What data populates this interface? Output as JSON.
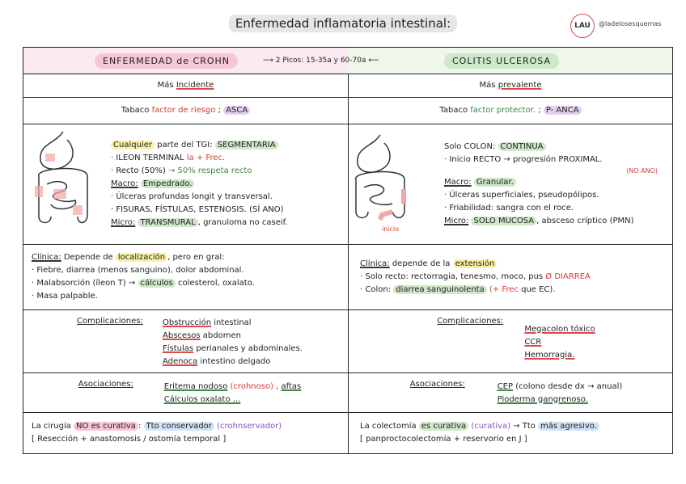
{
  "header": {
    "title": "Enfermedad inflamatoria intestinal:",
    "logo": "LAU",
    "handle": "@ladelosesquemas"
  },
  "table": {
    "top": {
      "left": "ENFERMEDAD de CROHN",
      "center": "2 Picos: 15-35a y 60-70a",
      "right": "COLITIS ULCEROSA"
    },
    "rows": [
      {
        "left": {
          "lines": [
            [
              {
                "text": "Más "
              },
              {
                "text": "Incidente",
                "underline": "#e04848"
              }
            ]
          ]
        },
        "right": {
          "lines": [
            [
              {
                "text": "Más "
              },
              {
                "text": "prevalente",
                "underline": "#e04848"
              }
            ]
          ]
        }
      },
      {
        "left": {
          "lines": [
            [
              {
                "text": "Tabaco "
              },
              {
                "text": "factor de riesgo",
                "color": "#d83a2e"
              },
              {
                "text": " ; "
              },
              {
                "text": "ASCA",
                "highlight": "#e3d0ef"
              }
            ]
          ]
        },
        "right": {
          "lines": [
            [
              {
                "text": "Tabaco "
              },
              {
                "text": "factor protector.",
                "color": "#3c8a4a"
              },
              {
                "text": " ; "
              },
              {
                "text": "P- ANCA",
                "highlight": "#e3d0ef"
              }
            ]
          ]
        }
      },
      {
        "left": {
          "lines": [
            [
              {
                "text": "Cualquier",
                "highlight": "#fbf0a6"
              },
              {
                "text": " parte del TGI: "
              },
              {
                "text": "SEGMENTARIA",
                "highlight": "#cfe8c9"
              }
            ],
            [
              {
                "text": "· ILEON TERMINAL "
              },
              {
                "text": "la + Frec.",
                "color": "#d83a2e"
              }
            ],
            [
              {
                "text": "· Recto (50%) "
              },
              {
                "text": "→ 50% respeta recto",
                "color": "#3c8a4a"
              }
            ],
            [
              {
                "text": "Macro:",
                "underline": "#333333"
              },
              {
                "text": " "
              },
              {
                "text": "Empedrado.",
                "highlight": "#cfe8c9"
              }
            ],
            [
              {
                "text": "· Úlceras profundas longit y transversal."
              }
            ],
            [
              {
                "text": "· FISURAS, FÍSTULAS, ESTENOSIS. (SÍ ANO)"
              }
            ],
            [
              {
                "text": "Micro:",
                "underline": "#333333"
              },
              {
                "text": " "
              },
              {
                "text": "TRANSMURAL",
                "highlight": "#cfe8c9"
              },
              {
                "text": ", granuloma no caseif."
              }
            ]
          ]
        },
        "right": {
          "note": "inicio",
          "lines": [
            [
              {
                "text": "Solo COLON: "
              },
              {
                "text": "CONTINUA",
                "highlight": "#cfe8c9"
              }
            ],
            [
              {
                "text": "· Inicio RECTO → progresión PROXIMAL."
              }
            ],
            [
              {
                "text": "(NO ANO)",
                "color": "#d83a2e"
              }
            ],
            [
              {
                "text": "Macro:",
                "underline": "#333333"
              },
              {
                "text": " "
              },
              {
                "text": "Granular.",
                "highlight": "#cfe8c9"
              }
            ],
            [
              {
                "text": "· Úlceras superficiales, pseudopólipos."
              }
            ],
            [
              {
                "text": "· Friabilidad: sangra con el roce."
              }
            ],
            [
              {
                "text": "Micro:",
                "underline": "#333333"
              },
              {
                "text": " "
              },
              {
                "text": "SOLO MUCOSA",
                "highlight": "#cfe8c9"
              },
              {
                "text": ", absceso críptico (PMN)"
              }
            ]
          ]
        }
      },
      {
        "left": {
          "lines": [
            [
              {
                "text": "Clínica:",
                "underline": "#333333"
              },
              {
                "text": " Depende de "
              },
              {
                "text": "localización",
                "highlight": "#fbf0a6"
              },
              {
                "text": ", pero en gral:"
              }
            ],
            [
              {
                "text": "· Fiebre, diarrea (menos sanguino), dolor abdominal."
              }
            ],
            [
              {
                "text": "· Malabsorción (íleon T) → "
              },
              {
                "text": "cálculos",
                "highlight": "#cfe8c9"
              },
              {
                "text": " colesterol, oxalato."
              }
            ],
            [
              {
                "text": "· Masa palpable."
              }
            ]
          ]
        },
        "right": {
          "lines": [
            [
              {
                "text": "Clínica:",
                "underline": "#333333"
              },
              {
                "text": " depende de la "
              },
              {
                "text": "extensión",
                "highlight": "#fbf0a6"
              }
            ],
            [
              {
                "text": "· Solo recto: rectorragia, tenesmo, moco, pus "
              },
              {
                "text": "Ø DIARREA",
                "color": "#d83a2e"
              }
            ],
            [
              {
                "text": "· Colon: "
              },
              {
                "text": "diarrea sanguinolenta",
                "highlight": "#cfe8c9"
              },
              {
                "text": " (+ Frec",
                "color": "#d83a2e"
              },
              {
                "text": " que EC)."
              }
            ]
          ]
        }
      },
      {
        "left": {
          "label": "Complicaciones:",
          "lines": [
            [
              {
                "text": "Obstrucción",
                "underline": "#e04848"
              },
              {
                "text": " intestinal"
              }
            ],
            [
              {
                "text": "Abscesos",
                "underline": "#e04848"
              },
              {
                "text": " abdomen"
              }
            ],
            [
              {
                "text": "Fístulas",
                "underline": "#e04848"
              },
              {
                "text": " perianales y abdominales."
              }
            ],
            [
              {
                "text": "Adenoca",
                "underline": "#e04848"
              },
              {
                "text": " intestino delgado"
              }
            ]
          ]
        },
        "right": {
          "label": "Complicaciones:",
          "lines": [
            [
              {
                "text": "Megacolon tóxico",
                "underline": "#e04848"
              }
            ],
            [
              {
                "text": "CCR",
                "underline": "#e04848"
              }
            ],
            [
              {
                "text": "Hemorragia.",
                "underline": "#e04848"
              }
            ]
          ]
        }
      },
      {
        "left": {
          "label": "Asociaciones:",
          "lines": [
            [
              {
                "text": "Eritema nodoso",
                "underline": "#3c8a4a"
              },
              {
                "text": " "
              },
              {
                "text": "(crohnoso)",
                "color": "#d83a2e"
              },
              {
                "text": " , "
              },
              {
                "text": "aftas",
                "underline": "#3c8a4a"
              }
            ],
            [
              {
                "text": "Cálculos oxalato ...",
                "underline": "#3c8a4a"
              }
            ]
          ]
        },
        "right": {
          "label": "Asociaciones:",
          "lines": [
            [
              {
                "text": "CEP",
                "underline": "#3c8a4a"
              },
              {
                "text": " (colono desde dx → anual)"
              }
            ],
            [
              {
                "text": "Pioderma gangrenoso.",
                "underline": "#3c8a4a"
              }
            ]
          ]
        }
      },
      {
        "left": {
          "lines": [
            [
              {
                "text": "La cirugía "
              },
              {
                "text": "NO es curativa",
                "highlight": "#f6c6d6"
              },
              {
                "text": ": "
              },
              {
                "text": "Tto conservador",
                "highlight": "#cfe3f5"
              },
              {
                "text": " (crohnservador)",
                "color": "#8a4fbf"
              }
            ],
            [
              {
                "text": "[ Resección + anastomosis / ostomía temporal ]"
              }
            ]
          ]
        },
        "right": {
          "lines": [
            [
              {
                "text": "La colectomía "
              },
              {
                "text": "es curativa",
                "highlight": "#cfe8c9"
              },
              {
                "text": " (curativa)",
                "color": "#8a4fbf"
              },
              {
                "text": " → Tto "
              },
              {
                "text": "más agresivo.",
                "highlight": "#cfe3f5"
              }
            ],
            [
              {
                "text": "[ panproctocolectomía + reservorio en J ]"
              }
            ]
          ]
        }
      }
    ]
  }
}
